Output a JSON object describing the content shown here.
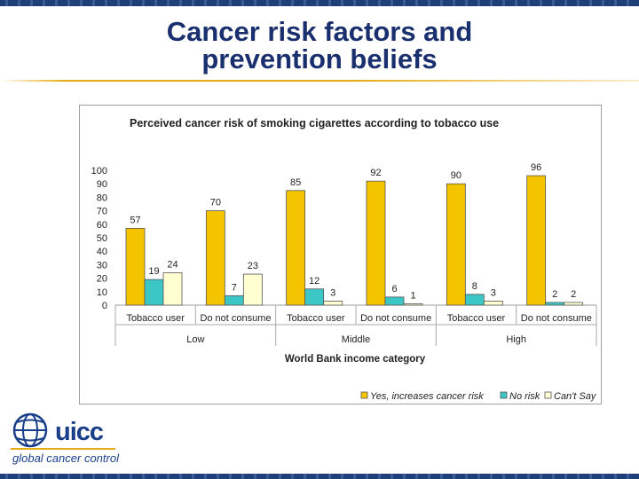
{
  "slide": {
    "title_line1": "Cancer risk factors and",
    "title_line2": "prevention beliefs"
  },
  "logo": {
    "wordmark": "uicc",
    "tagline": "global cancer control"
  },
  "colors": {
    "accent_gold": "#e6aa14",
    "brand_blue": "#1a2f6e",
    "series_yes": "#f5c400",
    "series_no_risk": "#3cc6c6",
    "series_cant_say": "#ffffd2"
  },
  "chart_data": {
    "type": "bar",
    "title": "Perceived cancer risk of smoking cigarettes according to tobacco use",
    "xlabel": "World Bank income category",
    "ylabel": "",
    "ylim": [
      0,
      100
    ],
    "yticks": [
      0,
      10,
      20,
      30,
      40,
      50,
      60,
      70,
      80,
      90,
      100
    ],
    "groups": [
      "Low",
      "Middle",
      "High"
    ],
    "categories": [
      "Tobacco user",
      "Do not consume",
      "Tobacco user",
      "Do not consume",
      "Tobacco user",
      "Do not consume"
    ],
    "series": [
      {
        "name": "Yes, increases cancer risk",
        "color": "#f5c400",
        "values": [
          57,
          70,
          85,
          92,
          90,
          96
        ]
      },
      {
        "name": "No risk",
        "color": "#3cc6c6",
        "values": [
          19,
          7,
          12,
          6,
          8,
          2
        ]
      },
      {
        "name": "Can't Say",
        "color": "#ffffd2",
        "values": [
          24,
          23,
          3,
          1,
          3,
          2
        ]
      }
    ],
    "legend_position": "bottom-right",
    "grid": false
  }
}
